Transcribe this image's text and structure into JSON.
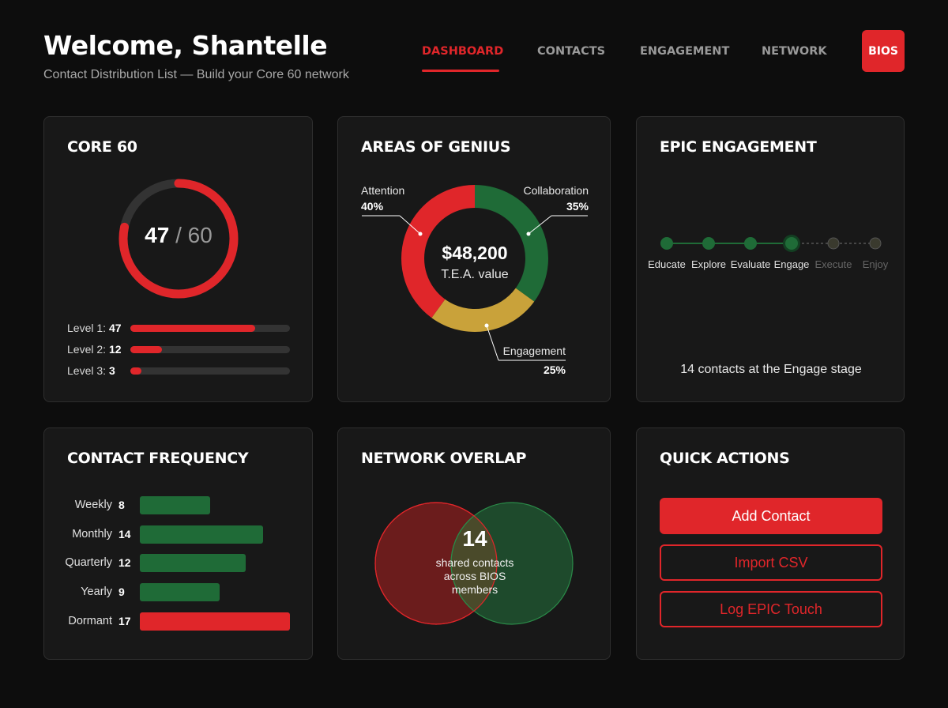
{
  "header": {
    "welcome": "Welcome, Shantelle",
    "subtitle": "Contact Distribution List — Build your Core 60 network",
    "nav": [
      "DASHBOARD",
      "CONTACTS",
      "ENGAGEMENT",
      "NETWORK"
    ],
    "active_nav": "DASHBOARD",
    "bios_button": "BIOS"
  },
  "colors": {
    "accent_red": "#e0262a",
    "green": "#1f6b37",
    "gold": "#c9a23a",
    "background": "#0d0d0d",
    "card": "#181818"
  },
  "core60": {
    "title": "CORE 60",
    "current": 47,
    "separator": "/",
    "total": 60,
    "levels": [
      {
        "label": "Level 1:",
        "value": 47
      },
      {
        "label": "Level 2:",
        "value": 12
      },
      {
        "label": "Level 3:",
        "value": 3
      }
    ]
  },
  "genius": {
    "title": "AREAS OF GENIUS",
    "center_value": "$48,200",
    "center_label": "T.E.A. value",
    "segments": [
      {
        "name": "Attention",
        "pct": "40%",
        "value": 40,
        "color": "#e0262a"
      },
      {
        "name": "Collaboration",
        "pct": "35%",
        "value": 35,
        "color": "#1f6b37"
      },
      {
        "name": "Engagement",
        "pct": "25%",
        "value": 25,
        "color": "#c9a23a"
      }
    ]
  },
  "epic": {
    "title": "EPIC ENGAGEMENT",
    "stages": [
      "Educate",
      "Explore",
      "Evaluate",
      "Engage",
      "Execute",
      "Enjoy"
    ],
    "current_stage": "Engage",
    "summary": "14 contacts at the Engage stage"
  },
  "frequency": {
    "title": "CONTACT FREQUENCY",
    "chart_data": {
      "type": "bar",
      "categories": [
        "Weekly",
        "Monthly",
        "Quarterly",
        "Yearly",
        "Dormant"
      ],
      "values": [
        8,
        14,
        12,
        9,
        17
      ]
    }
  },
  "overlap": {
    "title": "NETWORK OVERLAP",
    "count": "14",
    "line1": "shared contacts",
    "line2": "across BIOS",
    "line3": "members"
  },
  "actions": {
    "title": "QUICK ACTIONS",
    "add": "Add Contact",
    "import": "Import CSV",
    "log": "Log EPIC Touch"
  }
}
